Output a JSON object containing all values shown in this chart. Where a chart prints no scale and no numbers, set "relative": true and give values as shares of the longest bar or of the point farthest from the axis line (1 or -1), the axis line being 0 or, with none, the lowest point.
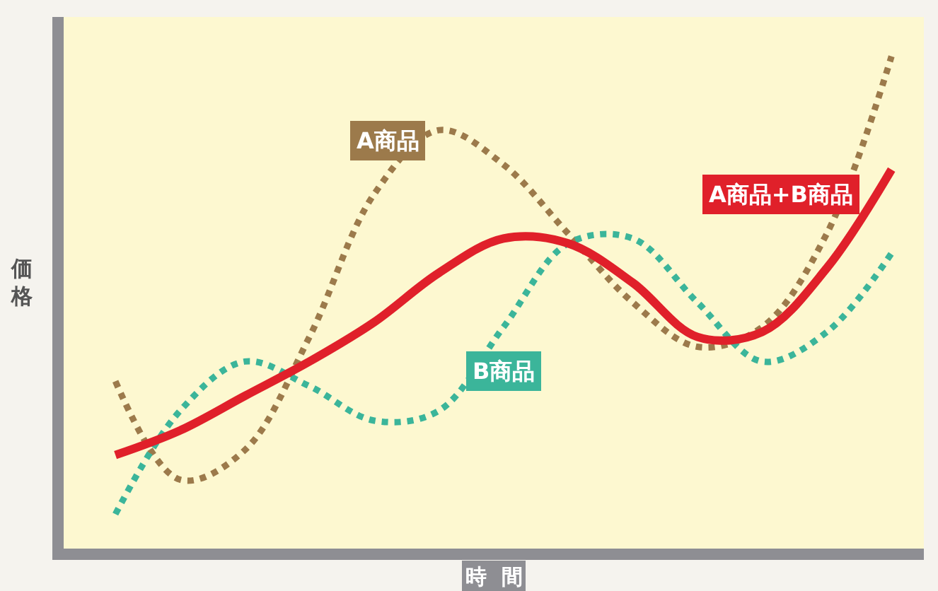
{
  "chart_data": {
    "type": "line",
    "relative": true,
    "xlabel": "時間",
    "ylabel": "価格",
    "categories": [
      null,
      null,
      null,
      null,
      null,
      null,
      null,
      null,
      null,
      null,
      null,
      null,
      null
    ],
    "line_style": "dotted",
    "legend": false,
    "grid": false,
    "series": [
      {
        "name": "A商品",
        "color": "#9c7a4b",
        "values": [
          0.34,
          0.14,
          0.2,
          0.43,
          0.72,
          0.85,
          0.78,
          0.64,
          0.5,
          0.41,
          0.45,
          0.64,
          1
        ]
      },
      {
        "name": "B商品",
        "color": "#3bb59a",
        "values": [
          0.07,
          0.28,
          0.38,
          0.33,
          0.26,
          0.28,
          0.45,
          0.62,
          0.63,
          0.5,
          0.38,
          0.44,
          0.6
        ]
      },
      {
        "name": "A商品+B商品",
        "color": "#e0202a",
        "values": [
          0.19,
          0.24,
          0.31,
          0.38,
          0.46,
          0.56,
          0.63,
          0.62,
          0.54,
          0.43,
          0.44,
          0.57,
          0.77
        ],
        "line_style": "solid"
      }
    ]
  }
}
